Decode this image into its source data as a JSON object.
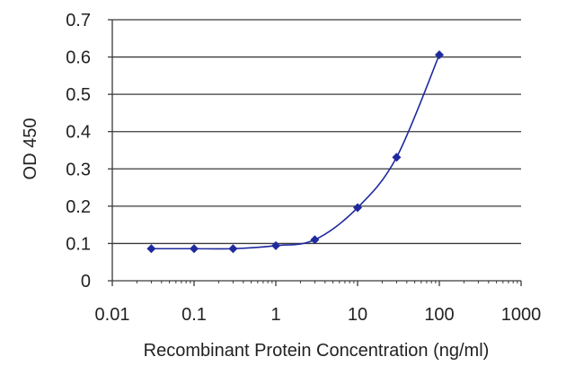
{
  "chart_data": {
    "type": "line",
    "title": "",
    "xlabel": "Recombinant Protein Concentration (ng/ml)",
    "ylabel": "OD 450",
    "xscale": "log",
    "xlim": [
      0.01,
      1000
    ],
    "ylim": [
      0,
      0.7
    ],
    "xticks": [
      "0.01",
      "0.1",
      "1",
      "10",
      "100",
      "1000"
    ],
    "yticks": [
      "0",
      "0.1",
      "0.2",
      "0.3",
      "0.4",
      "0.5",
      "0.6",
      "0.7"
    ],
    "grid": "horizontal",
    "series": [
      {
        "color": "#1f2a9e",
        "marker": "diamond",
        "x": [
          0.03,
          0.1,
          0.3,
          1,
          3,
          10,
          30,
          100
        ],
        "y": [
          0.086,
          0.086,
          0.086,
          0.094,
          0.11,
          0.196,
          0.331,
          0.606
        ]
      }
    ]
  }
}
